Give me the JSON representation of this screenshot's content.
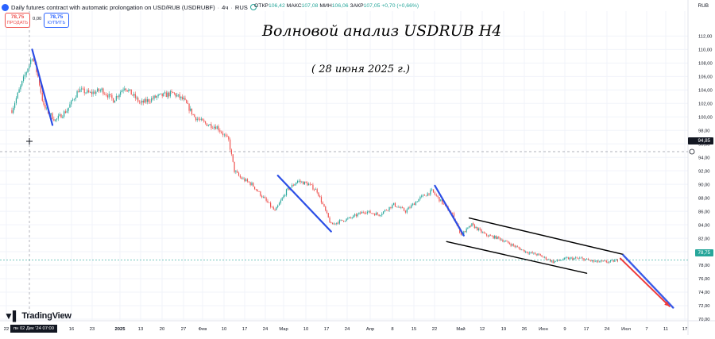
{
  "header": {
    "instrument": "Daily futures contract with automatic prolongation on USD/RUB (USDRUBF)",
    "interval": "4ч",
    "exchange": "RUS",
    "ohlc": {
      "open_label": "ОТКР",
      "open": "106,42",
      "high_label": "МАКС",
      "high": "107,08",
      "low_label": "МИН",
      "low": "106,06",
      "close_label": "ЗАКР",
      "close": "107,05",
      "change": "+0,70 (+0,66%)"
    }
  },
  "trade": {
    "sell_price": "78,75",
    "sell_label": "ПРОДАТЬ",
    "spread": "0,00",
    "buy_price": "78,75",
    "buy_label": "КУПИТЬ"
  },
  "axis_currency": "RUB",
  "logo_text": "TradingView",
  "crosshair": {
    "price_label": "94,85",
    "date_label": "пн 02 Дек '24  07:00"
  },
  "current_price_label": "78,75",
  "colors": {
    "up": "#26a69a",
    "down": "#ef5350",
    "wave": "#2b4ee6",
    "channel": "#000000",
    "forecast_blue": "#3a5be8",
    "forecast_red": "#ef3b3b",
    "grid": "#f0f3fa",
    "crosshair": "#9598a1"
  },
  "chart_data": {
    "type": "candlestick",
    "title": "Волновой анализ USDRUB H4",
    "subtitle": "( 28 июня 2025 г.)",
    "xlabel": "",
    "ylabel": "",
    "y_axis_side": "right",
    "ylim": [
      69.7,
      113.4
    ],
    "y_ticks": [
      "112,00",
      "110,00",
      "108,00",
      "106,00",
      "104,00",
      "102,00",
      "100,00",
      "98,00",
      "96,00",
      "94,00",
      "92,00",
      "90,00",
      "88,00",
      "86,00",
      "84,00",
      "82,00",
      "80,00",
      "78,00",
      "76,00",
      "74,00",
      "72,00",
      "70,00"
    ],
    "x_ticks": [
      "22",
      "16",
      "23",
      "2025",
      "13",
      "20",
      "27",
      "Фев",
      "10",
      "17",
      "24",
      "Мар",
      "10",
      "17",
      "24",
      "Апр",
      "8",
      "15",
      "22",
      "Май",
      "12",
      "19",
      "26",
      "Июн",
      "9",
      "17",
      "24",
      "Июл",
      "7",
      "11",
      "17"
    ],
    "grid": true,
    "price_path": [
      [
        "2024-11-25",
        101.0
      ],
      [
        "2024-11-28",
        104.5
      ],
      [
        "2024-12-02",
        109.0
      ],
      [
        "2024-12-04",
        106.0
      ],
      [
        "2024-12-06",
        101.5
      ],
      [
        "2024-12-10",
        99.5
      ],
      [
        "2024-12-14",
        101.0
      ],
      [
        "2024-12-18",
        104.0
      ],
      [
        "2024-12-22",
        103.5
      ],
      [
        "2024-12-26",
        104.0
      ],
      [
        "2024-12-30",
        102.5
      ],
      [
        "2025-01-03",
        104.5
      ],
      [
        "2025-01-09",
        102.0
      ],
      [
        "2025-01-15",
        103.0
      ],
      [
        "2025-01-21",
        103.5
      ],
      [
        "2025-01-25",
        102.5
      ],
      [
        "2025-01-29",
        100.0
      ],
      [
        "2025-02-02",
        99.0
      ],
      [
        "2025-02-06",
        98.5
      ],
      [
        "2025-02-10",
        96.5
      ],
      [
        "2025-02-12",
        92.0
      ],
      [
        "2025-02-14",
        91.0
      ],
      [
        "2025-02-18",
        90.0
      ],
      [
        "2025-02-22",
        88.0
      ],
      [
        "2025-02-26",
        86.0
      ],
      [
        "2025-03-02",
        89.0
      ],
      [
        "2025-03-06",
        90.5
      ],
      [
        "2025-03-10",
        90.0
      ],
      [
        "2025-03-13",
        89.0
      ],
      [
        "2025-03-16",
        86.0
      ],
      [
        "2025-03-18",
        84.0
      ],
      [
        "2025-03-21",
        84.5
      ],
      [
        "2025-03-25",
        85.0
      ],
      [
        "2025-03-30",
        86.0
      ],
      [
        "2025-04-04",
        85.5
      ],
      [
        "2025-04-09",
        87.0
      ],
      [
        "2025-04-13",
        86.0
      ],
      [
        "2025-04-18",
        88.0
      ],
      [
        "2025-04-22",
        89.0
      ],
      [
        "2025-04-26",
        87.0
      ],
      [
        "2025-04-29",
        85.5
      ],
      [
        "2025-05-02",
        82.5
      ],
      [
        "2025-05-06",
        84.0
      ],
      [
        "2025-05-11",
        82.5
      ],
      [
        "2025-05-16",
        82.0
      ],
      [
        "2025-05-21",
        81.0
      ],
      [
        "2025-05-26",
        80.0
      ],
      [
        "2025-05-31",
        79.5
      ],
      [
        "2025-06-05",
        78.5
      ],
      [
        "2025-06-10",
        79.0
      ],
      [
        "2025-06-15",
        79.0
      ],
      [
        "2025-06-20",
        78.5
      ],
      [
        "2025-06-25",
        78.5
      ],
      [
        "2025-06-28",
        78.75
      ]
    ],
    "annotations": {
      "wave_lines": [
        [
          [
            "2024-12-02",
            110.0
          ],
          [
            "2024-12-09",
            98.8
          ]
        ],
        [
          [
            "2025-02-27",
            91.3
          ],
          [
            "2025-03-18",
            83.0
          ]
        ],
        [
          [
            "2025-04-23",
            89.8
          ],
          [
            "2025-05-03",
            82.4
          ]
        ]
      ],
      "channel_upper": [
        [
          "2025-05-05",
          85.0
        ],
        [
          "2025-06-30",
          79.6
        ]
      ],
      "channel_lower": [
        [
          "2025-04-27",
          81.5
        ],
        [
          "2025-06-17",
          76.8
        ]
      ],
      "forecast_blue": [
        [
          "2025-06-30",
          79.5
        ],
        [
          "2025-07-14",
          71.7
        ]
      ],
      "forecast_red": [
        [
          "2025-06-29",
          79.0
        ],
        [
          "2025-07-13",
          71.9
        ]
      ]
    }
  }
}
